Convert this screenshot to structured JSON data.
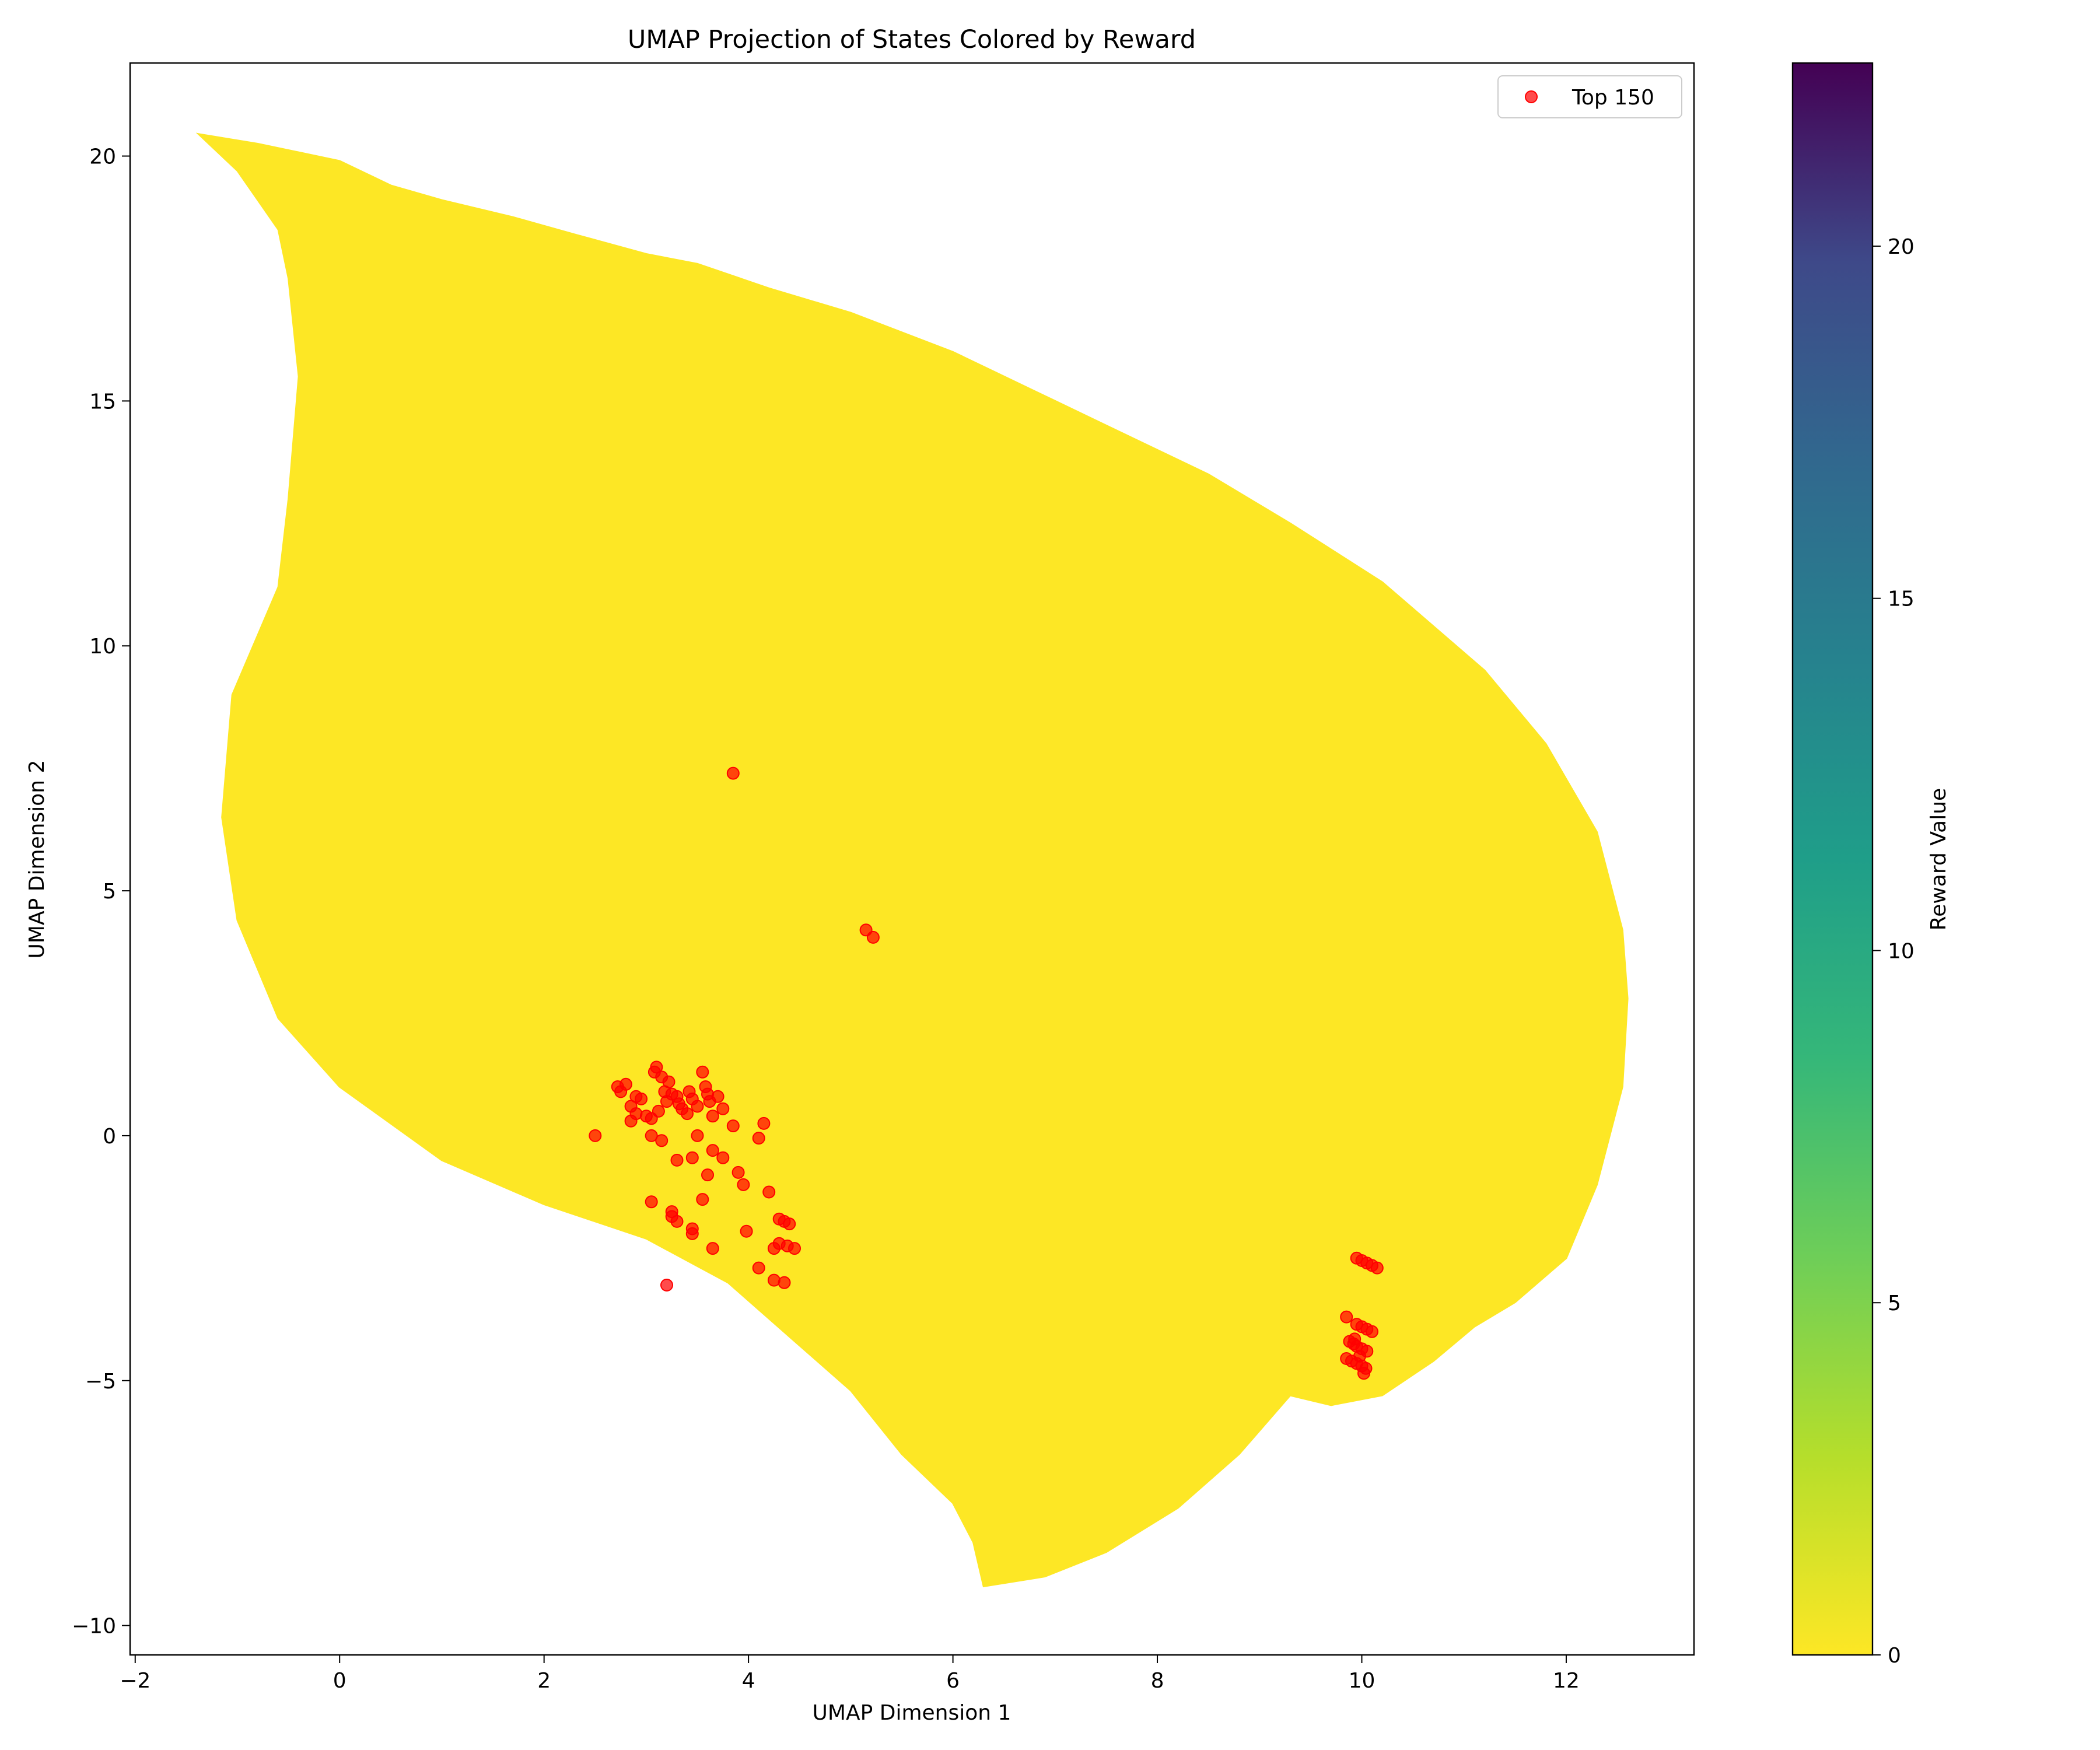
{
  "chart_data": {
    "type": "scatter",
    "title": "UMAP Projection of States Colored by Reward",
    "xlabel": "UMAP Dimension 1",
    "ylabel": "UMAP Dimension 2",
    "xlim": [
      -2.05,
      13.25
    ],
    "ylim": [
      -10.6,
      21.9
    ],
    "x_ticks": [
      -2,
      0,
      2,
      4,
      6,
      8,
      10,
      12
    ],
    "y_ticks": [
      -10,
      -5,
      0,
      5,
      10,
      15,
      20
    ],
    "x_tick_labels": [
      "−2",
      "0",
      "2",
      "4",
      "6",
      "8",
      "10",
      "12"
    ],
    "y_tick_labels": [
      "−10",
      "−5",
      "0",
      "5",
      "10",
      "15",
      "20"
    ],
    "grid": false,
    "legend_placement": "top-right",
    "colorbar": {
      "label": "Reward Value",
      "colormap": "viridis_r",
      "range": [
        0,
        22.6
      ],
      "ticks": [
        0,
        5,
        10,
        15,
        20
      ],
      "tick_labels": [
        "0",
        "5",
        "10",
        "15",
        "20"
      ]
    },
    "cloud_color": "#fde725",
    "highlight_color": "#ff0000",
    "cloud_outline": [
      [
        -1.38,
        20.45
      ],
      [
        -0.8,
        20.25
      ],
      [
        0.0,
        19.9
      ],
      [
        0.5,
        19.4
      ],
      [
        1.0,
        19.1
      ],
      [
        1.7,
        18.75
      ],
      [
        2.3,
        18.4
      ],
      [
        3.0,
        18.0
      ],
      [
        3.5,
        17.8
      ],
      [
        4.2,
        17.3
      ],
      [
        5.0,
        16.8
      ],
      [
        6.0,
        16.0
      ],
      [
        7.0,
        15.0
      ],
      [
        7.8,
        14.2
      ],
      [
        8.5,
        13.5
      ],
      [
        9.3,
        12.5
      ],
      [
        10.2,
        11.3
      ],
      [
        11.2,
        9.5
      ],
      [
        11.8,
        8.0
      ],
      [
        12.3,
        6.2
      ],
      [
        12.55,
        4.2
      ],
      [
        12.6,
        2.8
      ],
      [
        12.55,
        1.0
      ],
      [
        12.3,
        -1.0
      ],
      [
        12.0,
        -2.5
      ],
      [
        11.5,
        -3.4
      ],
      [
        11.1,
        -3.9
      ],
      [
        10.7,
        -4.6
      ],
      [
        10.2,
        -5.3
      ],
      [
        9.7,
        -5.5
      ],
      [
        9.3,
        -5.3
      ],
      [
        8.8,
        -6.5
      ],
      [
        8.2,
        -7.6
      ],
      [
        7.5,
        -8.5
      ],
      [
        6.9,
        -9.0
      ],
      [
        6.3,
        -9.2
      ],
      [
        6.2,
        -8.3
      ],
      [
        6.0,
        -7.5
      ],
      [
        5.5,
        -6.5
      ],
      [
        5.0,
        -5.2
      ],
      [
        4.4,
        -4.1
      ],
      [
        3.8,
        -3.0
      ],
      [
        3.0,
        -2.1
      ],
      [
        2.0,
        -1.4
      ],
      [
        1.0,
        -0.5
      ],
      [
        0.0,
        1.0
      ],
      [
        -0.6,
        2.4
      ],
      [
        -1.0,
        4.4
      ],
      [
        -1.15,
        6.5
      ],
      [
        -1.05,
        9.0
      ],
      [
        -0.6,
        11.2
      ],
      [
        -0.5,
        13.0
      ],
      [
        -0.4,
        15.5
      ],
      [
        -0.5,
        17.5
      ],
      [
        -0.6,
        18.5
      ],
      [
        -1.0,
        19.7
      ]
    ],
    "top_points": {
      "name": "Top 150",
      "x": [
        3.85,
        5.15,
        5.22,
        2.5,
        2.72,
        2.75,
        2.8,
        2.85,
        2.9,
        2.95,
        3.0,
        3.05,
        3.08,
        3.1,
        3.12,
        3.15,
        3.18,
        3.2,
        3.22,
        3.25,
        3.3,
        3.32,
        3.35,
        3.4,
        3.42,
        3.45,
        3.5,
        3.55,
        3.58,
        3.6,
        3.62,
        3.65,
        3.7,
        3.75,
        3.85,
        3.9,
        4.1,
        4.15,
        2.85,
        2.9,
        3.05,
        3.15,
        3.3,
        3.45,
        3.5,
        3.65,
        3.75,
        3.95,
        4.2,
        3.05,
        3.25,
        3.3,
        3.45,
        3.55,
        4.3,
        4.35,
        4.4,
        3.25,
        3.45,
        3.65,
        3.98,
        4.1,
        4.25,
        4.3,
        4.38,
        4.45,
        4.25,
        4.35,
        3.2,
        3.6,
        9.95,
        10.0,
        10.05,
        10.1,
        10.15,
        9.85,
        9.95,
        10.0,
        10.05,
        10.1,
        9.88,
        9.92,
        9.95,
        10.0,
        10.05,
        9.85,
        9.9,
        9.95,
        10.0,
        10.02,
        9.98,
        9.93,
        10.04
      ],
      "y": [
        7.4,
        4.2,
        4.05,
        0.0,
        1.0,
        0.9,
        1.05,
        0.6,
        0.8,
        0.75,
        0.4,
        0.35,
        1.3,
        1.4,
        0.5,
        1.2,
        0.9,
        0.7,
        1.1,
        0.85,
        0.8,
        0.65,
        0.55,
        0.45,
        0.9,
        0.75,
        0.6,
        1.3,
        1.0,
        0.85,
        0.7,
        0.4,
        0.8,
        0.55,
        0.2,
        -0.75,
        -0.05,
        0.25,
        0.3,
        0.45,
        0.0,
        -0.1,
        -0.5,
        -0.45,
        0.0,
        -0.3,
        -0.45,
        -1.0,
        -1.15,
        -1.35,
        -1.55,
        -1.75,
        -2.0,
        -1.3,
        -1.7,
        -1.75,
        -1.8,
        -1.65,
        -1.9,
        -2.3,
        -1.95,
        -2.7,
        -2.3,
        -2.2,
        -2.25,
        -2.3,
        -2.95,
        -3.0,
        -3.05,
        -0.8,
        -2.5,
        -2.55,
        -2.6,
        -2.65,
        -2.7,
        -3.7,
        -3.85,
        -3.9,
        -3.95,
        -4.0,
        -4.2,
        -4.25,
        -4.3,
        -4.35,
        -4.4,
        -4.55,
        -4.6,
        -4.65,
        -4.7,
        -4.85,
        -4.5,
        -4.15,
        -4.75
      ]
    }
  }
}
